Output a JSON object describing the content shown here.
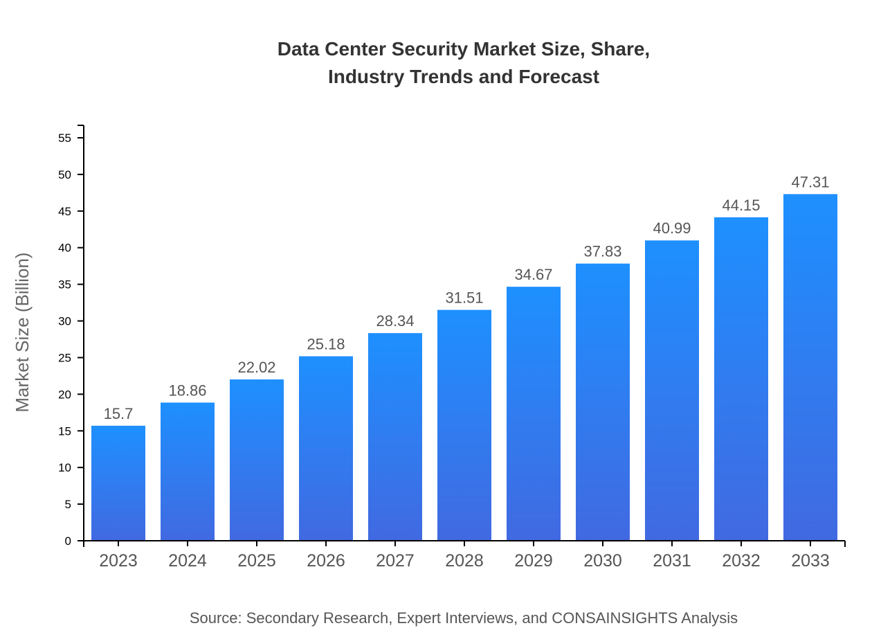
{
  "chart_data": {
    "type": "bar",
    "title_lines": [
      "Data Center Security Market Size, Share,",
      "Industry Trends and Forecast"
    ],
    "categories": [
      "2023",
      "2024",
      "2025",
      "2026",
      "2027",
      "2028",
      "2029",
      "2030",
      "2031",
      "2032",
      "2033"
    ],
    "values": [
      15.7,
      18.86,
      22.02,
      25.18,
      28.34,
      31.51,
      34.67,
      37.83,
      40.99,
      44.15,
      47.31
    ],
    "xlabel": "",
    "ylabel": "Market Size (Billion)",
    "ylim": [
      0,
      56.7
    ],
    "yticks": [
      0,
      5,
      10,
      15,
      20,
      25,
      30,
      35,
      40,
      45,
      50,
      55
    ],
    "grid": false,
    "colors": {
      "bar_top": "#1e90ff",
      "bar_bottom": "#4169e1"
    },
    "source": "Source: Secondary Research, Expert Interviews, and CONSAINSIGHTS Analysis"
  }
}
